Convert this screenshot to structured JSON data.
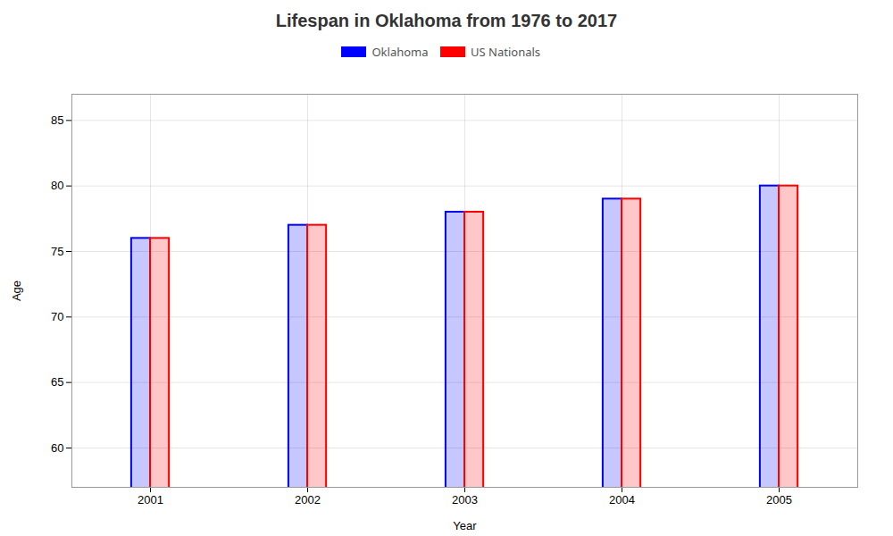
{
  "chart_data": {
    "type": "bar",
    "title": "Lifespan in Oklahoma from 1976 to 2017",
    "xlabel": "Year",
    "ylabel": "Age",
    "categories": [
      "2001",
      "2002",
      "2003",
      "2004",
      "2005"
    ],
    "series": [
      {
        "name": "Oklahoma",
        "color": "#0000ff",
        "values": [
          76,
          77,
          78,
          79,
          80
        ]
      },
      {
        "name": "US Nationals",
        "color": "#ff0000",
        "values": [
          76,
          77,
          78,
          79,
          80
        ]
      }
    ],
    "ylim": [
      57,
      87
    ],
    "yticks": [
      60,
      65,
      70,
      75,
      80,
      85
    ],
    "grid": true,
    "legend": "top"
  }
}
